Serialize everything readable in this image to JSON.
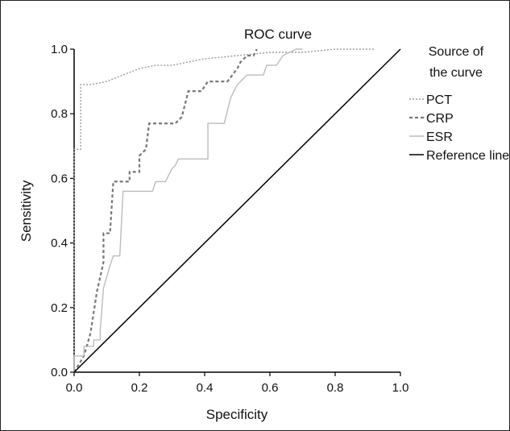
{
  "chart_data": {
    "type": "line",
    "title": "ROC curve",
    "xlabel": "Specificity",
    "ylabel": "Sensitivity",
    "xlim": [
      0.0,
      1.0
    ],
    "ylim": [
      0.0,
      1.0
    ],
    "xticks": [
      "0.0",
      "0.2",
      "0.4",
      "0.6",
      "0.8",
      "1.0"
    ],
    "yticks": [
      "0.0",
      "0.2",
      "0.4",
      "0.6",
      "0.8",
      "1.0"
    ],
    "legend_title": "Source of the curve",
    "legend_title_lines": [
      "Source of",
      "the curve"
    ],
    "legend_position": "right",
    "grid": false,
    "series": [
      {
        "name": "PCT",
        "color": "#9a9a9a",
        "style": "dotted",
        "points": [
          [
            0,
            0
          ],
          [
            0,
            0.69
          ],
          [
            0.02,
            0.69
          ],
          [
            0.02,
            0.89
          ],
          [
            0.05,
            0.89
          ],
          [
            0.1,
            0.9
          ],
          [
            0.15,
            0.92
          ],
          [
            0.2,
            0.94
          ],
          [
            0.25,
            0.95
          ],
          [
            0.3,
            0.95
          ],
          [
            0.4,
            0.97
          ],
          [
            0.5,
            0.98
          ],
          [
            0.6,
            0.99
          ],
          [
            0.7,
            0.99
          ],
          [
            0.8,
            1.0
          ],
          [
            0.92,
            1.0
          ]
        ]
      },
      {
        "name": "CRP",
        "color": "#777777",
        "style": "dashed",
        "points": [
          [
            0,
            0
          ],
          [
            0.03,
            0.05
          ],
          [
            0.05,
            0.12
          ],
          [
            0.07,
            0.25
          ],
          [
            0.09,
            0.34
          ],
          [
            0.09,
            0.43
          ],
          [
            0.11,
            0.43
          ],
          [
            0.12,
            0.59
          ],
          [
            0.17,
            0.59
          ],
          [
            0.17,
            0.62
          ],
          [
            0.2,
            0.62
          ],
          [
            0.2,
            0.67
          ],
          [
            0.22,
            0.69
          ],
          [
            0.23,
            0.77
          ],
          [
            0.31,
            0.77
          ],
          [
            0.33,
            0.79
          ],
          [
            0.35,
            0.87
          ],
          [
            0.39,
            0.87
          ],
          [
            0.41,
            0.9
          ],
          [
            0.47,
            0.9
          ],
          [
            0.5,
            0.94
          ],
          [
            0.51,
            0.96
          ],
          [
            0.53,
            0.98
          ],
          [
            0.55,
            0.98
          ],
          [
            0.56,
            1.0
          ]
        ]
      },
      {
        "name": "ESR",
        "color": "#bcbcbc",
        "style": "solid",
        "points": [
          [
            0,
            0
          ],
          [
            0,
            0.05
          ],
          [
            0.03,
            0.05
          ],
          [
            0.03,
            0.08
          ],
          [
            0.06,
            0.08
          ],
          [
            0.06,
            0.1
          ],
          [
            0.08,
            0.1
          ],
          [
            0.08,
            0.13
          ],
          [
            0.09,
            0.26
          ],
          [
            0.11,
            0.33
          ],
          [
            0.12,
            0.36
          ],
          [
            0.14,
            0.36
          ],
          [
            0.15,
            0.56
          ],
          [
            0.24,
            0.56
          ],
          [
            0.25,
            0.59
          ],
          [
            0.28,
            0.59
          ],
          [
            0.3,
            0.63
          ],
          [
            0.31,
            0.64
          ],
          [
            0.32,
            0.66
          ],
          [
            0.41,
            0.66
          ],
          [
            0.41,
            0.77
          ],
          [
            0.46,
            0.77
          ],
          [
            0.48,
            0.85
          ],
          [
            0.5,
            0.89
          ],
          [
            0.53,
            0.92
          ],
          [
            0.58,
            0.92
          ],
          [
            0.59,
            0.95
          ],
          [
            0.62,
            0.95
          ],
          [
            0.64,
            0.98
          ],
          [
            0.68,
            1.0
          ],
          [
            0.7,
            1.0
          ]
        ]
      },
      {
        "name": "Reference line",
        "color": "#000000",
        "style": "solid",
        "points": [
          [
            0,
            0
          ],
          [
            1,
            1
          ]
        ]
      }
    ]
  }
}
